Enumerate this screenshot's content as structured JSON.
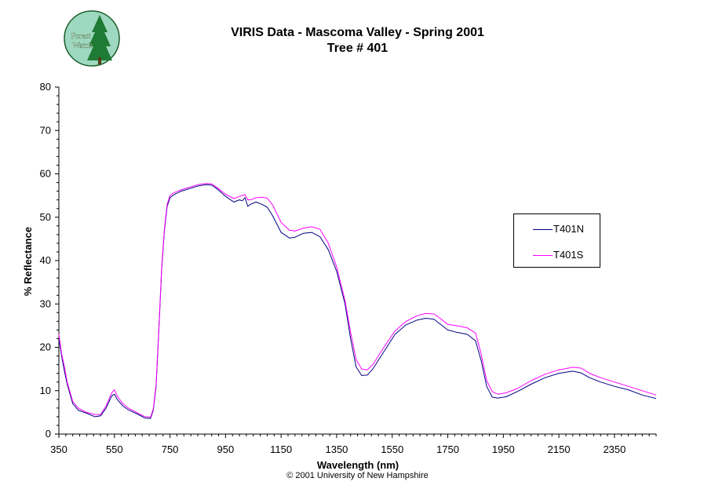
{
  "logo": {
    "text_line1": "Forest",
    "text_line2": "Watch"
  },
  "title_line1": "VIRIS Data - Mascoma Valley - Spring 2001",
  "title_line2": "Tree # 401",
  "copyright": "© 2001 University of New Hampshire",
  "chart_data": {
    "type": "line",
    "title": "VIRIS Data - Mascoma Valley - Spring 2001",
    "subtitle": "Tree # 401",
    "xlabel": "Wavelength (nm)",
    "ylabel": "% Reflectance",
    "xlim": [
      350,
      2500
    ],
    "ylim": [
      0,
      80
    ],
    "xticks": [
      350,
      550,
      750,
      950,
      1150,
      1350,
      1550,
      1750,
      1950,
      2150,
      2350
    ],
    "yticks": [
      0,
      10,
      20,
      30,
      40,
      50,
      60,
      70,
      80
    ],
    "grid": false,
    "legend_position": "right",
    "series": [
      {
        "name": "T401N",
        "color": "#000080",
        "x": [
          350,
          360,
          370,
          380,
          400,
          420,
          450,
          480,
          500,
          520,
          540,
          550,
          560,
          580,
          600,
          630,
          660,
          680,
          690,
          700,
          710,
          720,
          730,
          740,
          750,
          760,
          770,
          790,
          820,
          850,
          880,
          900,
          920,
          950,
          980,
          1000,
          1010,
          1020,
          1030,
          1040,
          1060,
          1080,
          1100,
          1120,
          1150,
          1180,
          1200,
          1230,
          1260,
          1290,
          1320,
          1350,
          1380,
          1400,
          1420,
          1440,
          1460,
          1480,
          1500,
          1530,
          1560,
          1600,
          1640,
          1670,
          1700,
          1720,
          1750,
          1780,
          1820,
          1850,
          1870,
          1890,
          1910,
          1930,
          1960,
          2000,
          2050,
          2100,
          2150,
          2200,
          2230,
          2260,
          2300,
          2350,
          2400,
          2450,
          2500
        ],
        "y": [
          22.0,
          18.0,
          14.5,
          11.5,
          7.0,
          5.5,
          4.8,
          4.0,
          4.2,
          6.0,
          8.8,
          9.2,
          8.0,
          6.5,
          5.6,
          4.7,
          3.7,
          3.6,
          5.5,
          11.0,
          24.0,
          38.0,
          47.0,
          52.5,
          54.5,
          55.0,
          55.4,
          56.0,
          56.6,
          57.2,
          57.5,
          57.4,
          56.5,
          54.8,
          53.5,
          54.0,
          53.8,
          54.5,
          52.5,
          53.0,
          53.5,
          53.0,
          52.3,
          50.3,
          46.5,
          45.2,
          45.4,
          46.3,
          46.5,
          45.5,
          42.5,
          37.5,
          30.0,
          22.0,
          15.5,
          13.5,
          13.6,
          15.0,
          17.0,
          20.0,
          23.0,
          25.2,
          26.3,
          26.7,
          26.5,
          25.5,
          24.0,
          23.5,
          23.0,
          21.5,
          17.0,
          11.0,
          8.5,
          8.3,
          8.6,
          9.8,
          11.5,
          13.0,
          14.0,
          14.5,
          14.1,
          13.0,
          12.0,
          11.0,
          10.2,
          9.0,
          8.2
        ]
      },
      {
        "name": "T401S",
        "color": "#ff00ff",
        "x": [
          350,
          360,
          370,
          380,
          400,
          420,
          450,
          480,
          500,
          520,
          540,
          550,
          560,
          580,
          600,
          630,
          660,
          680,
          690,
          700,
          710,
          720,
          730,
          740,
          750,
          760,
          770,
          790,
          820,
          850,
          880,
          900,
          920,
          950,
          980,
          1000,
          1010,
          1020,
          1030,
          1040,
          1060,
          1080,
          1100,
          1120,
          1150,
          1180,
          1200,
          1230,
          1260,
          1290,
          1320,
          1350,
          1380,
          1400,
          1420,
          1440,
          1460,
          1480,
          1500,
          1530,
          1560,
          1600,
          1640,
          1670,
          1700,
          1720,
          1750,
          1780,
          1820,
          1850,
          1870,
          1890,
          1910,
          1930,
          1960,
          2000,
          2050,
          2100,
          2150,
          2200,
          2230,
          2260,
          2300,
          2350,
          2400,
          2450,
          2500
        ],
        "y": [
          23.0,
          18.5,
          15.5,
          12.0,
          7.5,
          6.0,
          5.0,
          4.5,
          4.5,
          6.5,
          9.5,
          10.2,
          8.8,
          7.0,
          6.0,
          5.0,
          4.0,
          3.9,
          5.8,
          11.5,
          24.5,
          38.5,
          47.5,
          53.0,
          55.0,
          55.5,
          55.8,
          56.3,
          56.9,
          57.5,
          57.8,
          57.7,
          56.8,
          55.3,
          54.3,
          54.8,
          55.0,
          55.2,
          54.0,
          54.0,
          54.5,
          54.6,
          54.4,
          52.8,
          48.8,
          47.0,
          46.8,
          47.5,
          47.8,
          47.2,
          44.0,
          38.5,
          30.8,
          23.5,
          17.2,
          15.0,
          14.8,
          16.0,
          18.0,
          21.0,
          23.8,
          26.0,
          27.3,
          27.8,
          27.7,
          26.8,
          25.3,
          25.0,
          24.5,
          23.3,
          18.5,
          12.3,
          9.8,
          9.2,
          9.5,
          10.5,
          12.3,
          13.8,
          14.8,
          15.4,
          15.2,
          14.0,
          13.0,
          12.0,
          11.0,
          10.0,
          9.0
        ]
      }
    ]
  }
}
